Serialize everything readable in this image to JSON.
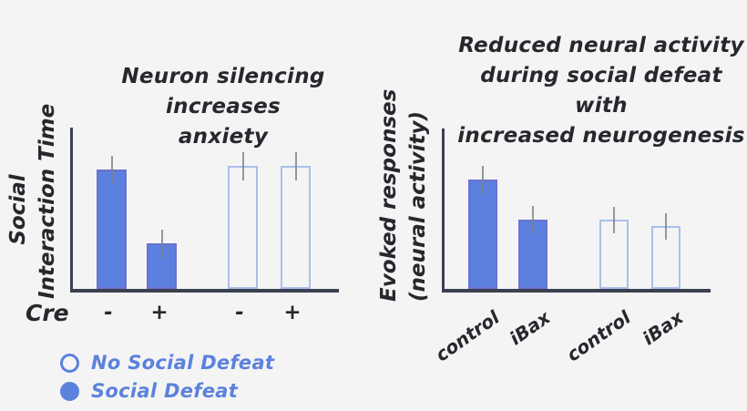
{
  "page": {
    "background_color": "#f5f4f5"
  },
  "colors": {
    "filled_bar": "#5b80e0",
    "filled_bar_border": "#6d72cf",
    "open_bar_border": "#a9c0ea",
    "axis": "#3a4150",
    "error_bar": "#7d7f8a",
    "title_text": "#26282d",
    "legend_accent": "#5b82dd"
  },
  "left_chart": {
    "title_lines": [
      "Neuron silencing increases",
      "anxiety"
    ],
    "ylabel_lines": [
      "Social",
      "Interaction Time"
    ],
    "x_axis_name": "Cre",
    "tick_labels": [
      "-",
      "+",
      "-",
      "+"
    ]
  },
  "right_chart": {
    "title_lines": [
      "Reduced neural activity",
      "during social defeat with",
      "increased neurogenesis"
    ],
    "ylabel_lines": [
      "Evoked responses",
      "(neural activity)"
    ],
    "tick_labels": [
      "control",
      "iBax",
      "control",
      "iBax"
    ]
  },
  "legend": {
    "items": [
      {
        "marker": "open-circle",
        "label": "No Social Defeat"
      },
      {
        "marker": "filled-circle",
        "label": "Social Defeat"
      }
    ]
  },
  "chart_data": [
    {
      "type": "bar",
      "title": "Neuron silencing increases anxiety",
      "xlabel": "Cre",
      "ylabel": "Social Interaction Time",
      "categories": [
        "-",
        "+",
        "-",
        "+"
      ],
      "groups": [
        "Social Defeat",
        "Social Defeat",
        "No Social Defeat",
        "No Social Defeat"
      ],
      "values": [
        0.74,
        0.28,
        0.76,
        0.76
      ],
      "errors": [
        0.085,
        0.085,
        0.085,
        0.085
      ],
      "styles": [
        "filled",
        "filled",
        "open",
        "open"
      ],
      "ylim": [
        0,
        1
      ],
      "yticks": "none",
      "grid": false,
      "legend_position": "bottom-left"
    },
    {
      "type": "bar",
      "title": "Reduced neural activity during social defeat with increased neurogenesis",
      "xlabel": "",
      "ylabel": "Evoked responses (neural activity)",
      "categories": [
        "control",
        "iBax",
        "control",
        "iBax"
      ],
      "groups": [
        "Social Defeat",
        "Social Defeat",
        "No Social Defeat",
        "No Social Defeat"
      ],
      "values": [
        0.68,
        0.43,
        0.43,
        0.39
      ],
      "errors": [
        0.088,
        0.088,
        0.082,
        0.082
      ],
      "styles": [
        "filled",
        "filled",
        "open",
        "open"
      ],
      "ylim": [
        0,
        1
      ],
      "yticks": "none",
      "grid": false
    }
  ]
}
